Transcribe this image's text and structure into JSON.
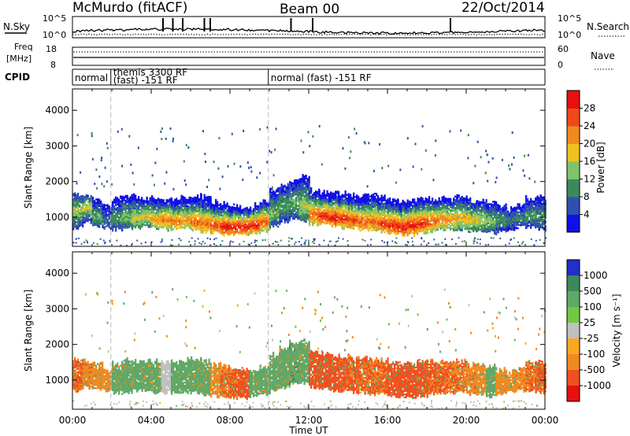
{
  "header": {
    "station": "McMurdo (fitACF)",
    "beam": "Beam 00",
    "date": "22/Oct/2014"
  },
  "top_panels": {
    "nsky_label": "N.Sky",
    "nsearch_label": "N.Search",
    "noise_ticks": [
      "10^5",
      "10^0"
    ],
    "freq_label_1": "Freq",
    "freq_label_2": "[MHz]",
    "freq_ticks": [
      "18",
      "8"
    ],
    "nave_label": "Nave",
    "nave_ticks": [
      "60",
      "0"
    ],
    "cpid_label": "CPID",
    "cpid_segments": [
      {
        "line1": "normal",
        "line2": "",
        "start_hour": 0,
        "end_hour": 1.95
      },
      {
        "line1": "themis 3300 RF",
        "line2": "(fast) -151 RF",
        "start_hour": 1.95,
        "end_hour": 9.95
      },
      {
        "line1": "normal (fast) -151 RF",
        "line2": "",
        "start_hour": 9.95,
        "end_hour": 24
      }
    ]
  },
  "chart_data": [
    {
      "type": "heatmap",
      "name": "power-panel",
      "ylabel": "Slant Range [km]",
      "xlim": [
        0,
        24
      ],
      "ylim": [
        180,
        4600
      ],
      "yticks": [
        1000,
        2000,
        3000,
        4000
      ],
      "colorbar": {
        "label": "Power [dB]",
        "ticks": [
          "4",
          "8",
          "12",
          "16",
          "20",
          "24",
          "28"
        ],
        "colors": [
          "#1010e6",
          "#3050b0",
          "#3c8a5c",
          "#7ec46a",
          "#f0c020",
          "#f08a20",
          "#f04818",
          "#e81010"
        ]
      },
      "bands": [
        {
          "t0": 0.0,
          "t1": 0.5,
          "lo": 700,
          "hi": 1600,
          "core": 1150,
          "val": 16
        },
        {
          "t0": 0.5,
          "t1": 1.0,
          "lo": 850,
          "hi": 1550,
          "core": 1250,
          "val": 18
        },
        {
          "t0": 1.0,
          "t1": 1.5,
          "lo": 750,
          "hi": 1500,
          "core": 1000,
          "val": 13
        },
        {
          "t0": 1.5,
          "t1": 2.0,
          "lo": 700,
          "hi": 1300,
          "core": 900,
          "val": 9
        },
        {
          "t0": 2.0,
          "t1": 2.5,
          "lo": 650,
          "hi": 1500,
          "core": 950,
          "val": 11
        },
        {
          "t0": 2.5,
          "t1": 3.0,
          "lo": 700,
          "hi": 1600,
          "core": 1000,
          "val": 14
        },
        {
          "t0": 3.0,
          "t1": 3.5,
          "lo": 700,
          "hi": 1550,
          "core": 950,
          "val": 17
        },
        {
          "t0": 3.5,
          "t1": 4.0,
          "lo": 750,
          "hi": 1500,
          "core": 1000,
          "val": 19
        },
        {
          "t0": 4.0,
          "t1": 4.5,
          "lo": 700,
          "hi": 1550,
          "core": 900,
          "val": 22
        },
        {
          "t0": 4.5,
          "t1": 5.0,
          "lo": 650,
          "hi": 1500,
          "core": 900,
          "val": 24
        },
        {
          "t0": 5.0,
          "t1": 5.5,
          "lo": 650,
          "hi": 1500,
          "core": 850,
          "val": 24
        },
        {
          "t0": 5.5,
          "t1": 6.0,
          "lo": 700,
          "hi": 1550,
          "core": 900,
          "val": 22
        },
        {
          "t0": 6.0,
          "t1": 6.5,
          "lo": 650,
          "hi": 1600,
          "core": 850,
          "val": 25
        },
        {
          "t0": 6.5,
          "t1": 7.0,
          "lo": 600,
          "hi": 1550,
          "core": 800,
          "val": 24
        },
        {
          "t0": 7.0,
          "t1": 7.5,
          "lo": 550,
          "hi": 1400,
          "core": 750,
          "val": 27
        },
        {
          "t0": 7.5,
          "t1": 8.0,
          "lo": 500,
          "hi": 1350,
          "core": 700,
          "val": 30
        },
        {
          "t0": 8.0,
          "t1": 8.5,
          "lo": 500,
          "hi": 1300,
          "core": 700,
          "val": 30
        },
        {
          "t0": 8.5,
          "t1": 9.0,
          "lo": 500,
          "hi": 1250,
          "core": 700,
          "val": 30
        },
        {
          "t0": 9.0,
          "t1": 9.5,
          "lo": 550,
          "hi": 1300,
          "core": 750,
          "val": 30
        },
        {
          "t0": 9.5,
          "t1": 10.0,
          "lo": 600,
          "hi": 1400,
          "core": 850,
          "val": 26
        },
        {
          "t0": 10.0,
          "t1": 10.5,
          "lo": 750,
          "hi": 1750,
          "core": 1100,
          "val": 14
        },
        {
          "t0": 10.5,
          "t1": 11.0,
          "lo": 850,
          "hi": 1900,
          "core": 1300,
          "val": 12
        },
        {
          "t0": 11.0,
          "t1": 11.5,
          "lo": 950,
          "hi": 2000,
          "core": 1400,
          "val": 13
        },
        {
          "t0": 11.5,
          "t1": 12.0,
          "lo": 900,
          "hi": 2100,
          "core": 1300,
          "val": 16
        },
        {
          "t0": 12.0,
          "t1": 12.5,
          "lo": 800,
          "hi": 1750,
          "core": 1050,
          "val": 26
        },
        {
          "t0": 12.5,
          "t1": 13.0,
          "lo": 800,
          "hi": 1700,
          "core": 1000,
          "val": 29
        },
        {
          "t0": 13.0,
          "t1": 13.5,
          "lo": 750,
          "hi": 1650,
          "core": 950,
          "val": 30
        },
        {
          "t0": 13.5,
          "t1": 14.0,
          "lo": 700,
          "hi": 1650,
          "core": 950,
          "val": 28
        },
        {
          "t0": 14.0,
          "t1": 14.5,
          "lo": 700,
          "hi": 1600,
          "core": 900,
          "val": 27
        },
        {
          "t0": 14.5,
          "t1": 15.0,
          "lo": 650,
          "hi": 1600,
          "core": 850,
          "val": 26
        },
        {
          "t0": 15.0,
          "t1": 15.5,
          "lo": 650,
          "hi": 1600,
          "core": 850,
          "val": 25
        },
        {
          "t0": 15.5,
          "t1": 16.0,
          "lo": 600,
          "hi": 1550,
          "core": 800,
          "val": 27
        },
        {
          "t0": 16.0,
          "t1": 16.5,
          "lo": 550,
          "hi": 1500,
          "core": 750,
          "val": 29
        },
        {
          "t0": 16.5,
          "t1": 17.0,
          "lo": 500,
          "hi": 1450,
          "core": 700,
          "val": 30
        },
        {
          "t0": 17.0,
          "t1": 17.5,
          "lo": 500,
          "hi": 1450,
          "core": 750,
          "val": 30
        },
        {
          "t0": 17.5,
          "t1": 18.0,
          "lo": 550,
          "hi": 1500,
          "core": 800,
          "val": 28
        },
        {
          "t0": 18.0,
          "t1": 18.5,
          "lo": 600,
          "hi": 1500,
          "core": 850,
          "val": 26
        },
        {
          "t0": 18.5,
          "t1": 19.0,
          "lo": 650,
          "hi": 1500,
          "core": 900,
          "val": 24
        },
        {
          "t0": 19.0,
          "t1": 19.5,
          "lo": 650,
          "hi": 1500,
          "core": 900,
          "val": 22
        },
        {
          "t0": 19.5,
          "t1": 20.0,
          "lo": 650,
          "hi": 1550,
          "core": 950,
          "val": 20
        },
        {
          "t0": 20.0,
          "t1": 20.5,
          "lo": 600,
          "hi": 1450,
          "core": 900,
          "val": 19
        },
        {
          "t0": 20.5,
          "t1": 21.0,
          "lo": 600,
          "hi": 1450,
          "core": 900,
          "val": 17
        },
        {
          "t0": 21.0,
          "t1": 21.5,
          "lo": 550,
          "hi": 1400,
          "core": 850,
          "val": 15
        },
        {
          "t0": 21.5,
          "t1": 22.0,
          "lo": 600,
          "hi": 1300,
          "core": 900,
          "val": 11
        },
        {
          "t0": 22.0,
          "t1": 22.5,
          "lo": 650,
          "hi": 1200,
          "core": 900,
          "val": 9
        },
        {
          "t0": 22.5,
          "t1": 23.0,
          "lo": 700,
          "hi": 1300,
          "core": 950,
          "val": 10
        },
        {
          "t0": 23.0,
          "t1": 23.5,
          "lo": 700,
          "hi": 1500,
          "core": 1050,
          "val": 12
        },
        {
          "t0": 23.5,
          "t1": 24.0,
          "lo": 650,
          "hi": 1550,
          "core": 1000,
          "val": 11
        }
      ]
    },
    {
      "type": "heatmap",
      "name": "velocity-panel",
      "ylabel": "Slant Range [km]",
      "xlabel": "Time UT",
      "xlim": [
        0,
        24
      ],
      "ylim": [
        180,
        4600
      ],
      "yticks": [
        1000,
        2000,
        3000,
        4000
      ],
      "xticks": [
        "00:00",
        "04:00",
        "08:00",
        "12:00",
        "16:00",
        "20:00",
        "00:00"
      ],
      "colorbar": {
        "label": "Velocity [m s⁻¹]",
        "ticks": [
          "1000",
          "500",
          "100",
          "25",
          "-25",
          "-100",
          "-500",
          "-1000"
        ],
        "colors": [
          "#2030c8",
          "#3c8a5c",
          "#60a868",
          "#70c840",
          "#c0c0c0",
          "#f8a820",
          "#f08a20",
          "#f05020",
          "#e81010"
        ]
      },
      "bands": [
        {
          "t0": 0.0,
          "t1": 0.5,
          "lo": 700,
          "hi": 1550,
          "val": -300
        },
        {
          "t0": 0.5,
          "t1": 1.0,
          "lo": 800,
          "hi": 1500,
          "val": -250
        },
        {
          "t0": 1.0,
          "t1": 1.5,
          "lo": 750,
          "hi": 1450,
          "val": -200
        },
        {
          "t0": 1.5,
          "t1": 2.0,
          "lo": 700,
          "hi": 1250,
          "val": -150
        },
        {
          "t0": 2.0,
          "t1": 2.5,
          "lo": 650,
          "hi": 1450,
          "val": 150
        },
        {
          "t0": 2.5,
          "t1": 3.0,
          "lo": 650,
          "hi": 1550,
          "val": 200
        },
        {
          "t0": 3.0,
          "t1": 3.5,
          "lo": 700,
          "hi": 1500,
          "val": 180
        },
        {
          "t0": 3.5,
          "t1": 4.0,
          "lo": 700,
          "hi": 1500,
          "val": 150
        },
        {
          "t0": 4.0,
          "t1": 4.5,
          "lo": 650,
          "hi": 1500,
          "val": 120
        },
        {
          "t0": 4.5,
          "t1": 5.0,
          "lo": 650,
          "hi": 1500,
          "val": 10
        },
        {
          "t0": 5.0,
          "t1": 5.5,
          "lo": 650,
          "hi": 1500,
          "val": 160
        },
        {
          "t0": 5.5,
          "t1": 6.0,
          "lo": 650,
          "hi": 1550,
          "val": 140
        },
        {
          "t0": 6.0,
          "t1": 6.5,
          "lo": 650,
          "hi": 1550,
          "val": 180
        },
        {
          "t0": 6.5,
          "t1": 7.0,
          "lo": 600,
          "hi": 1500,
          "val": 220
        },
        {
          "t0": 7.0,
          "t1": 7.5,
          "lo": 550,
          "hi": 1400,
          "val": -150
        },
        {
          "t0": 7.5,
          "t1": 8.0,
          "lo": 500,
          "hi": 1350,
          "val": -300
        },
        {
          "t0": 8.0,
          "t1": 8.5,
          "lo": 500,
          "hi": 1300,
          "val": -350
        },
        {
          "t0": 8.5,
          "t1": 9.0,
          "lo": 500,
          "hi": 1250,
          "val": -400
        },
        {
          "t0": 9.0,
          "t1": 9.5,
          "lo": 550,
          "hi": 1250,
          "val": 150
        },
        {
          "t0": 9.5,
          "t1": 10.0,
          "lo": 600,
          "hi": 1350,
          "val": 200
        },
        {
          "t0": 10.0,
          "t1": 10.5,
          "lo": 700,
          "hi": 1700,
          "val": 180
        },
        {
          "t0": 10.5,
          "t1": 11.0,
          "lo": 800,
          "hi": 1900,
          "val": 220
        },
        {
          "t0": 11.0,
          "t1": 11.5,
          "lo": 900,
          "hi": 2050,
          "val": 250
        },
        {
          "t0": 11.5,
          "t1": 12.0,
          "lo": 900,
          "hi": 2100,
          "val": 200
        },
        {
          "t0": 12.0,
          "t1": 12.5,
          "lo": 800,
          "hi": 1750,
          "val": -400
        },
        {
          "t0": 12.5,
          "t1": 13.0,
          "lo": 750,
          "hi": 1700,
          "val": -450
        },
        {
          "t0": 13.0,
          "t1": 13.5,
          "lo": 700,
          "hi": 1650,
          "val": -420
        },
        {
          "t0": 13.5,
          "t1": 14.0,
          "lo": 700,
          "hi": 1650,
          "val": -380
        },
        {
          "t0": 14.0,
          "t1": 14.5,
          "lo": 650,
          "hi": 1600,
          "val": -350
        },
        {
          "t0": 14.5,
          "t1": 15.0,
          "lo": 650,
          "hi": 1600,
          "val": -320
        },
        {
          "t0": 15.0,
          "t1": 15.5,
          "lo": 600,
          "hi": 1550,
          "val": -300
        },
        {
          "t0": 15.5,
          "t1": 16.0,
          "lo": 600,
          "hi": 1550,
          "val": -330
        },
        {
          "t0": 16.0,
          "t1": 16.5,
          "lo": 550,
          "hi": 1500,
          "val": -400
        },
        {
          "t0": 16.5,
          "t1": 17.0,
          "lo": 500,
          "hi": 1450,
          "val": -450
        },
        {
          "t0": 17.0,
          "t1": 17.5,
          "lo": 500,
          "hi": 1450,
          "val": -420
        },
        {
          "t0": 17.5,
          "t1": 18.0,
          "lo": 550,
          "hi": 1500,
          "val": -380
        },
        {
          "t0": 18.0,
          "t1": 18.5,
          "lo": 600,
          "hi": 1500,
          "val": -350
        },
        {
          "t0": 18.5,
          "t1": 19.0,
          "lo": 650,
          "hi": 1500,
          "val": -320
        },
        {
          "t0": 19.0,
          "t1": 19.5,
          "lo": 650,
          "hi": 1500,
          "val": -300
        },
        {
          "t0": 19.5,
          "t1": 20.0,
          "lo": 650,
          "hi": 1500,
          "val": -280
        },
        {
          "t0": 20.0,
          "t1": 20.5,
          "lo": 600,
          "hi": 1400,
          "val": -250
        },
        {
          "t0": 20.5,
          "t1": 21.0,
          "lo": 600,
          "hi": 1400,
          "val": -200
        },
        {
          "t0": 21.0,
          "t1": 21.5,
          "lo": 550,
          "hi": 1350,
          "val": 150
        },
        {
          "t0": 21.5,
          "t1": 22.0,
          "lo": 600,
          "hi": 1250,
          "val": -150
        },
        {
          "t0": 22.0,
          "t1": 22.5,
          "lo": 650,
          "hi": 1200,
          "val": -200
        },
        {
          "t0": 22.5,
          "t1": 23.0,
          "lo": 700,
          "hi": 1300,
          "val": -250
        },
        {
          "t0": 23.0,
          "t1": 23.5,
          "lo": 700,
          "hi": 1450,
          "val": -300
        },
        {
          "t0": 23.5,
          "t1": 24.0,
          "lo": 650,
          "hi": 1500,
          "val": -350
        }
      ]
    }
  ]
}
